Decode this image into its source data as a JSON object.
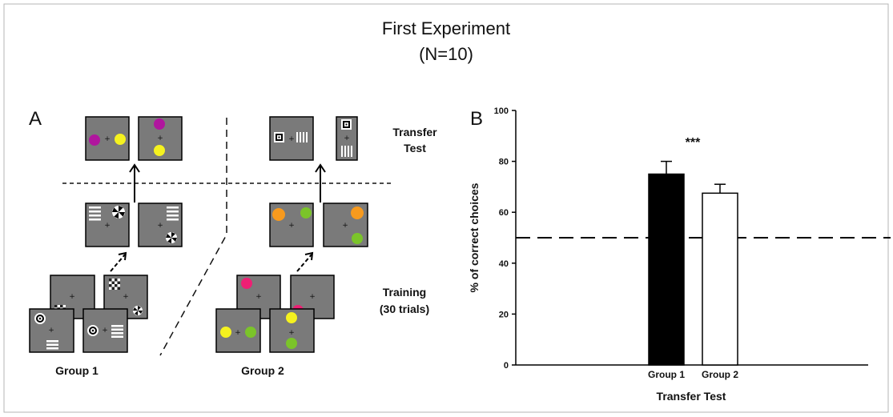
{
  "figure": {
    "title_line1": "First Experiment",
    "title_line2": "(N=10)"
  },
  "panel_a": {
    "label": "A",
    "transfer_label_line1": "Transfer",
    "transfer_label_line2": "Test",
    "training_label_line1": "Training",
    "training_label_line2": "(30 trials)",
    "group1_label": "Group 1",
    "group2_label": "Group 2",
    "fixation_glyph": "+",
    "colors": {
      "card_gray": "#7a7a7a",
      "magenta": "#b0169e",
      "yellow": "#f5f21f",
      "orange": "#f79a1e",
      "green": "#7bc42a",
      "pink": "#ee1f74"
    }
  },
  "chart_data": {
    "type": "bar",
    "panel_label": "B",
    "categories": [
      "Group 1",
      "Group 2"
    ],
    "values": [
      75,
      67.5
    ],
    "errors": [
      5,
      3.5
    ],
    "bar_fills": [
      "#000000",
      "#ffffff"
    ],
    "ylabel": "% of correct choices",
    "xlabel": "Transfer Test",
    "ylim": [
      0,
      100
    ],
    "yticks": [
      0,
      20,
      40,
      60,
      80,
      100
    ],
    "reference_line": 50,
    "annotation": "***",
    "grid": false
  }
}
